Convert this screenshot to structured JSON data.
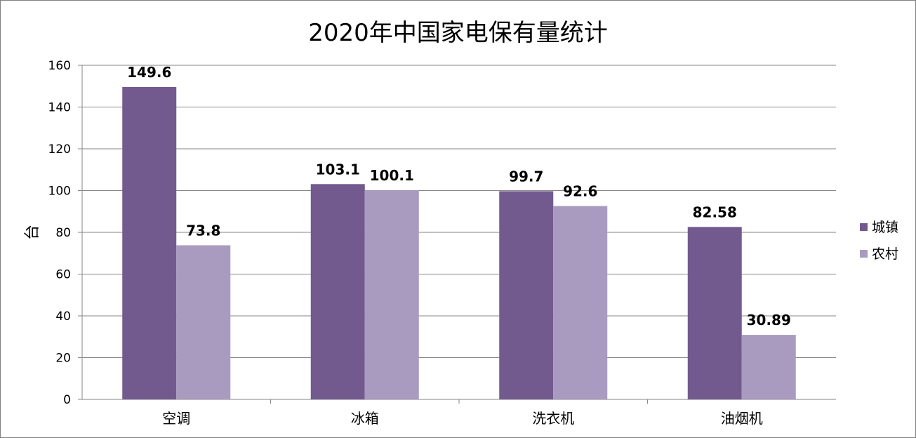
{
  "chart_data": {
    "type": "bar",
    "title": "2020年中国家电保有量统计",
    "ylabel": "台",
    "xlabel": "",
    "categories": [
      "空调",
      "冰箱",
      "洗衣机",
      "油烟机"
    ],
    "series": [
      {
        "name": "城镇",
        "values": [
          149.6,
          103.1,
          99.7,
          82.58
        ],
        "labels": [
          "149.6",
          "103.1",
          "99.7",
          "82.58"
        ],
        "color": "#725a8f"
      },
      {
        "name": "农村",
        "values": [
          73.8,
          100.1,
          92.6,
          30.89
        ],
        "labels": [
          "73.8",
          "100.1",
          "92.6",
          "30.89"
        ],
        "color": "#a99bc0"
      }
    ],
    "ylim": [
      0,
      160
    ],
    "yticks": [
      "0",
      "20",
      "40",
      "60",
      "80",
      "100",
      "120",
      "140",
      "160"
    ],
    "grid": true,
    "legend_position": "right"
  }
}
